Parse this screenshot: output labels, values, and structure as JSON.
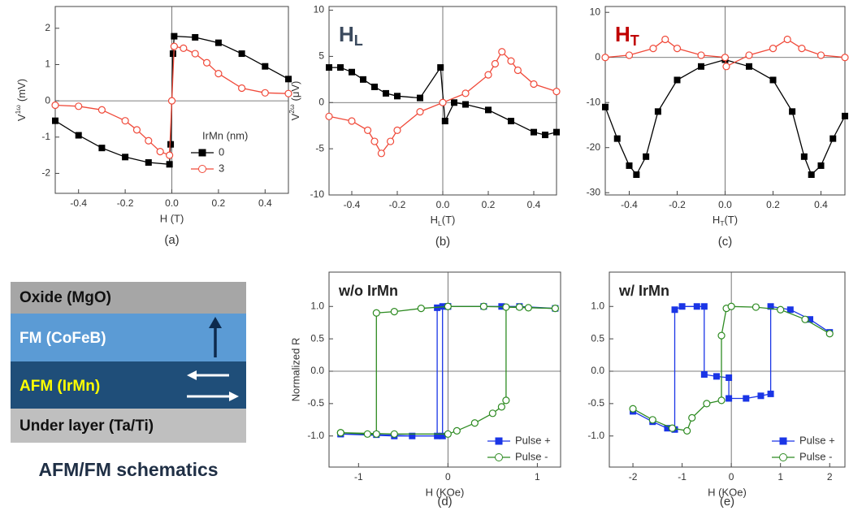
{
  "chart_data": [
    {
      "type": "line",
      "label": "(a)",
      "xlabel": "H (T)",
      "ylabel": {
        "main": "V",
        "sup": "1ω",
        "rest": "(mV)"
      },
      "xlim": [
        -0.5,
        0.5
      ],
      "ylim": [
        -2.55,
        2.6
      ],
      "xticks": [
        -0.4,
        -0.2,
        {
          "value": 0,
          "label": "0.0"
        },
        0.2,
        0.4
      ],
      "yticks": [
        -2,
        -1,
        0,
        1,
        2
      ],
      "zero_lines": true,
      "legend": "center right",
      "legend_title": "IrMn (nm)",
      "series": [
        {
          "name": "0",
          "color": "#000000",
          "marker": "square",
          "filled": true,
          "x": [
            -0.5,
            -0.4,
            -0.3,
            -0.2,
            -0.1,
            -0.01,
            -0.005,
            0.005,
            0.01,
            0.1,
            0.2,
            0.3,
            0.4,
            0.5
          ],
          "values": [
            -0.55,
            -0.95,
            -1.3,
            -1.55,
            -1.7,
            -1.75,
            -1.2,
            1.3,
            1.78,
            1.75,
            1.6,
            1.3,
            0.95,
            0.6
          ]
        },
        {
          "name": "3",
          "color": "#f04a3a",
          "marker": "circle",
          "filled": false,
          "x": [
            -0.5,
            -0.4,
            -0.3,
            -0.2,
            -0.15,
            -0.1,
            -0.05,
            -0.01,
            0,
            0.01,
            0.05,
            0.1,
            0.15,
            0.2,
            0.3,
            0.4,
            0.5
          ],
          "values": [
            -0.12,
            -0.15,
            -0.25,
            -0.55,
            -0.8,
            -1.1,
            -1.4,
            -1.5,
            0,
            1.5,
            1.45,
            1.3,
            1.05,
            0.75,
            0.35,
            0.22,
            0.2
          ]
        }
      ]
    },
    {
      "type": "line",
      "label": "(b)",
      "xlabel": {
        "main": "H",
        "sub": "L",
        "rest": "(T)"
      },
      "ylabel": {
        "main": "V",
        "sup": "2ω",
        "rest": "(μV)"
      },
      "annotation": {
        "main": "H",
        "sub": "L",
        "color": "#3b4a5e"
      },
      "xlim": [
        -0.5,
        0.5
      ],
      "ylim": [
        -10,
        10.4
      ],
      "xticks": [
        -0.4,
        -0.2,
        {
          "value": 0,
          "label": "0.0"
        },
        0.2,
        0.4
      ],
      "yticks": [
        -10,
        -5,
        0,
        5,
        10
      ],
      "zero_lines": true,
      "series": [
        {
          "color": "#000000",
          "marker": "square",
          "filled": true,
          "x": [
            -0.5,
            -0.45,
            -0.4,
            -0.35,
            -0.3,
            -0.25,
            -0.2,
            -0.1,
            -0.01,
            0.01,
            0.05,
            0.1,
            0.2,
            0.3,
            0.4,
            0.45,
            0.5
          ],
          "values": [
            3.8,
            3.8,
            3.3,
            2.5,
            1.7,
            1.0,
            0.7,
            0.5,
            3.8,
            -2,
            0,
            -0.2,
            -0.8,
            -2,
            -3.2,
            -3.5,
            -3.2
          ]
        },
        {
          "color": "#f04a3a",
          "marker": "circle",
          "filled": false,
          "x": [
            -0.5,
            -0.4,
            -0.33,
            -0.3,
            -0.27,
            -0.23,
            -0.2,
            -0.1,
            0,
            0.1,
            0.2,
            0.23,
            0.26,
            0.3,
            0.33,
            0.4,
            0.5
          ],
          "values": [
            -1.5,
            -2,
            -3,
            -4.2,
            -5.5,
            -4.2,
            -3,
            -1,
            0,
            1,
            3,
            4.2,
            5.5,
            4.5,
            3.5,
            2,
            1.2
          ]
        }
      ]
    },
    {
      "type": "line",
      "label": "(c)",
      "xlabel": {
        "main": "H",
        "sub": "T",
        "rest": "(T)"
      },
      "annotation": {
        "main": "H",
        "sub": "T",
        "color": "#c00000"
      },
      "xlim": [
        -0.5,
        0.5
      ],
      "ylim": [
        -30.5,
        11.3
      ],
      "xticks": [
        -0.4,
        -0.2,
        {
          "value": 0,
          "label": "0.0"
        },
        0.2,
        0.4
      ],
      "yticks": [
        -30,
        -20,
        -10,
        0,
        10
      ],
      "zero_lines": true,
      "series": [
        {
          "color": "#000000",
          "marker": "square",
          "filled": true,
          "x": [
            -0.5,
            -0.45,
            -0.4,
            -0.37,
            -0.33,
            -0.28,
            -0.2,
            -0.1,
            0,
            0.1,
            0.2,
            0.28,
            0.33,
            0.36,
            0.4,
            0.45,
            0.5
          ],
          "values": [
            -11,
            -18,
            -24,
            -26,
            -22,
            -12,
            -5,
            -2,
            -0.5,
            -2,
            -5,
            -12,
            -22,
            -26,
            -24,
            -18,
            -13
          ]
        },
        {
          "color": "#f04a3a",
          "marker": "circle",
          "filled": false,
          "x": [
            -0.5,
            -0.4,
            -0.3,
            -0.25,
            -0.2,
            -0.1,
            0,
            0.005,
            0.1,
            0.2,
            0.26,
            0.32,
            0.4,
            0.5
          ],
          "values": [
            0,
            0.5,
            2,
            4,
            2,
            0.5,
            0,
            -2,
            0.5,
            2,
            4,
            2,
            0.5,
            0
          ]
        }
      ]
    },
    {
      "type": "line",
      "label": "(d)",
      "xlabel": "H (KOe)",
      "ylabel": "Normalized R",
      "annotation": {
        "main": "w/o IrMn",
        "color": "#222222"
      },
      "xlim": [
        -1.33,
        1.26
      ],
      "ylim": [
        -1.48,
        1.53
      ],
      "xticks": [
        -1,
        0,
        1
      ],
      "yticks": [
        {
          "value": -1,
          "label": "-1.0"
        },
        -0.5,
        {
          "value": 0,
          "label": "0.0"
        },
        0.5,
        {
          "value": 1,
          "label": "1.0"
        }
      ],
      "zero_lines": true,
      "legend": "lower right",
      "series": [
        {
          "name": "Pulse +",
          "color": "#1a35e6",
          "marker": "square",
          "filled": true,
          "x": [
            -1.2,
            -0.8,
            -0.4,
            -0.12,
            -0.12,
            0,
            0.4,
            0.8,
            1.2,
            0.6,
            0,
            -0.06,
            -0.06,
            -0.6,
            -1.2
          ],
          "values": [
            -0.97,
            -0.98,
            -1.0,
            -1.0,
            0.98,
            1.0,
            1.0,
            1.0,
            0.97,
            1.0,
            1.0,
            1.0,
            -1.0,
            -1.0,
            -0.97
          ]
        },
        {
          "name": "Pulse -",
          "color": "#2e8b22",
          "marker": "circle",
          "filled": false,
          "x": [
            -1.2,
            -0.9,
            -0.8,
            -0.8,
            -0.6,
            -0.3,
            0,
            0.4,
            0.8,
            1.2,
            0.9,
            0.65,
            0.65,
            0.6,
            0.5,
            0.3,
            0.1,
            0,
            -0.6,
            -1.2
          ],
          "values": [
            -0.95,
            -0.97,
            -0.97,
            0.9,
            0.92,
            0.97,
            1.0,
            1.0,
            0.99,
            0.97,
            0.98,
            0.99,
            -0.45,
            -0.55,
            -0.65,
            -0.8,
            -0.92,
            -0.97,
            -0.97,
            -0.95
          ]
        }
      ]
    },
    {
      "type": "line",
      "label": "(e)",
      "xlabel": "H (KOe)",
      "annotation": {
        "main": "w/ IrMn",
        "color": "#222222"
      },
      "xlim": [
        -2.48,
        2.31
      ],
      "ylim": [
        -1.48,
        1.53
      ],
      "xticks": [
        -2,
        -1,
        0,
        1,
        2
      ],
      "yticks": [
        {
          "value": -1,
          "label": "-1.0"
        },
        -0.5,
        {
          "value": 0,
          "label": "0.0"
        },
        0.5,
        {
          "value": 1,
          "label": "1.0"
        }
      ],
      "zero_lines": true,
      "legend": "lower right",
      "series": [
        {
          "name": "Pulse +",
          "color": "#1a35e6",
          "marker": "square",
          "filled": true,
          "x": [
            -2,
            -1.6,
            -1.3,
            -1.15,
            -1.15,
            -1.0,
            -0.7,
            -0.55,
            -0.55,
            -0.3,
            -0.05,
            -0.05,
            0.3,
            0.6,
            0.8,
            0.8,
            1.2,
            1.6,
            2
          ],
          "values": [
            -0.62,
            -0.78,
            -0.88,
            -0.9,
            0.95,
            1.0,
            1.0,
            1.0,
            -0.05,
            -0.08,
            -0.1,
            -0.42,
            -0.42,
            -0.38,
            -0.35,
            1.0,
            0.95,
            0.8,
            0.6
          ]
        },
        {
          "name": "Pulse -",
          "color": "#2e8b22",
          "marker": "circle",
          "filled": false,
          "x": [
            -2,
            -1.6,
            -1.2,
            -0.9,
            -0.8,
            -0.5,
            -0.2,
            -0.2,
            -0.1,
            0,
            0.5,
            1.0,
            1.5,
            2
          ],
          "values": [
            -0.58,
            -0.75,
            -0.88,
            -0.92,
            -0.72,
            -0.5,
            -0.45,
            0.55,
            0.97,
            1.0,
            0.99,
            0.95,
            0.8,
            0.58
          ]
        }
      ]
    }
  ],
  "schematic": {
    "layers": [
      {
        "label": "Oxide (MgO)"
      },
      {
        "label": "FM (CoFeB)"
      },
      {
        "label": "AFM (IrMn)"
      },
      {
        "label": "Under layer (Ta/Ti)"
      }
    ],
    "caption": "AFM/FM schematics"
  }
}
